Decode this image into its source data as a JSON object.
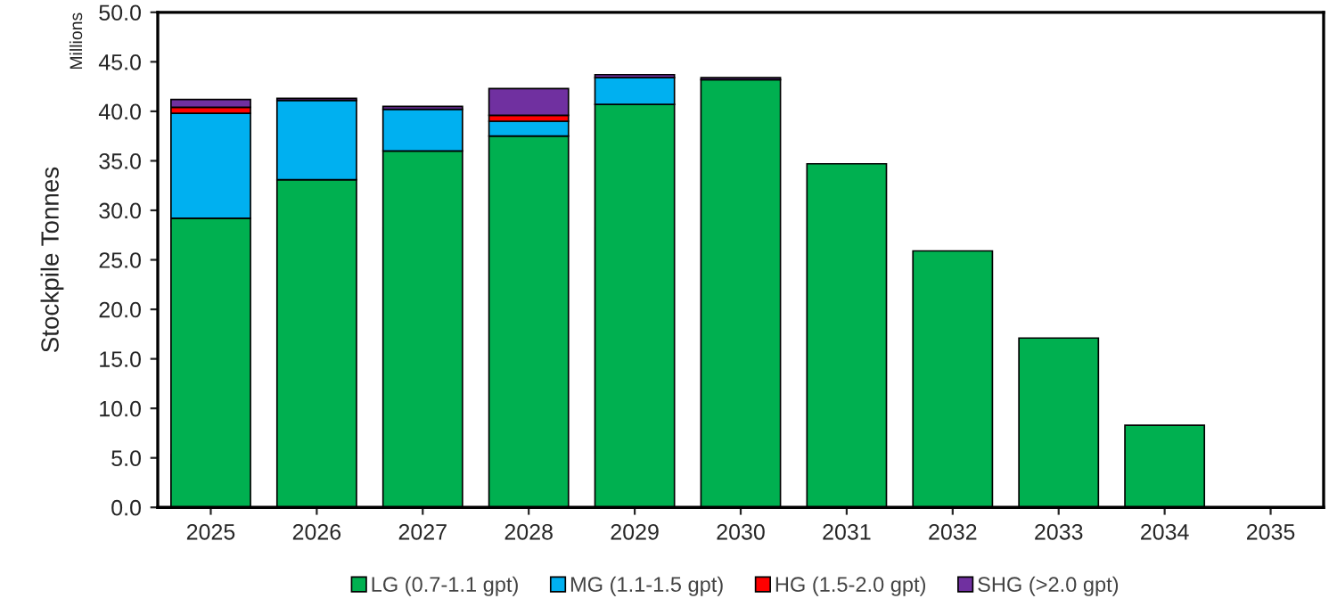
{
  "chart_data": {
    "type": "bar",
    "stacked": true,
    "ylabel": "Stockpile Tonnes",
    "annotations": [
      "Millions"
    ],
    "categories": [
      "2025",
      "2026",
      "2027",
      "2028",
      "2029",
      "2030",
      "2031",
      "2032",
      "2033",
      "2034",
      "2035"
    ],
    "series": [
      {
        "name": "LG (0.7-1.1 gpt)",
        "color": "#00b050",
        "values": [
          29.2,
          33.1,
          36.0,
          37.5,
          40.7,
          43.2,
          34.7,
          25.9,
          17.1,
          8.3,
          null
        ]
      },
      {
        "name": "MG (1.1-1.5 gpt)",
        "color": "#00b0f0",
        "values": [
          10.6,
          8.0,
          4.2,
          1.5,
          2.7,
          null,
          null,
          null,
          null,
          null,
          null
        ]
      },
      {
        "name": "HG (1.5-2.0 gpt)",
        "color": "#ff0000",
        "values": [
          0.6,
          null,
          null,
          0.6,
          null,
          null,
          null,
          null,
          null,
          null,
          null
        ]
      },
      {
        "name": "SHG (>2.0 gpt)",
        "color": "#7030a0",
        "values": [
          0.8,
          0.2,
          0.3,
          2.7,
          0.3,
          0.2,
          null,
          null,
          null,
          null,
          null
        ]
      }
    ],
    "ylim": [
      0,
      50
    ],
    "yticks": [
      {
        "value": 0,
        "label": "0.0"
      },
      {
        "value": 5,
        "label": "5.0"
      },
      {
        "value": 10,
        "label": "10.0"
      },
      {
        "value": 15,
        "label": "15.0"
      },
      {
        "value": 20,
        "label": "20.0"
      },
      {
        "value": 25,
        "label": "25.0"
      },
      {
        "value": 30,
        "label": "30.0"
      },
      {
        "value": 35,
        "label": "35.0"
      },
      {
        "value": 40,
        "label": "40.0"
      },
      {
        "value": 45,
        "label": "45.0"
      },
      {
        "value": 50,
        "label": "50.0"
      }
    ],
    "grid": false,
    "legend": "bottom"
  }
}
